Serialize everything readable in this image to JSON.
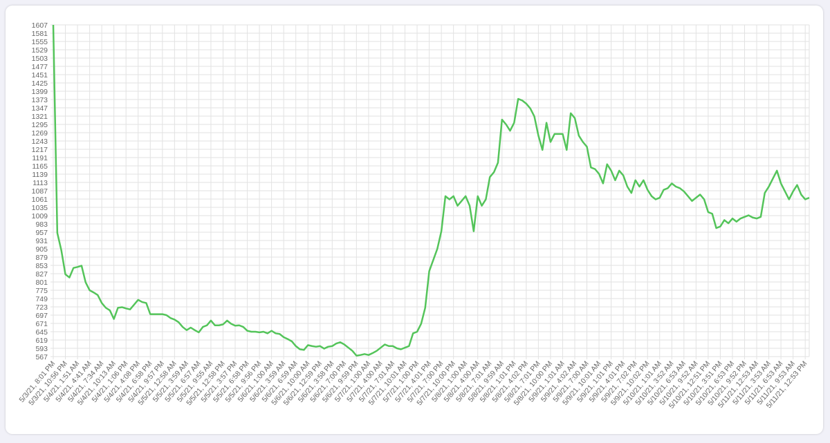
{
  "chart_data": {
    "type": "line",
    "color": "#54c45a",
    "grid": true,
    "categories": [
      "5/3/21, 8:01 PM",
      null,
      null,
      "5/3/21, 10:56 PM",
      null,
      null,
      "5/4/21, 1:51 AM",
      null,
      null,
      "5/4/21, 4:41 AM",
      null,
      null,
      "5/4/21, 7:34 AM",
      null,
      null,
      "5/4/21, 10:13 AM",
      null,
      null,
      "5/4/21, 1:06 PM",
      null,
      null,
      "5/4/21, 4:08 PM",
      null,
      null,
      "5/4/21, 6:58 PM",
      null,
      null,
      "5/4/21, 9:57 PM",
      null,
      null,
      "5/5/21, 12:58 AM",
      null,
      null,
      "5/5/21, 3:59 AM",
      null,
      null,
      "5/5/21, 6:57 AM",
      null,
      null,
      "5/5/21, 9:55 AM",
      null,
      null,
      "5/5/21, 12:58 PM",
      null,
      null,
      "5/5/21, 3:57 PM",
      null,
      null,
      "5/5/21, 6:58 PM",
      null,
      null,
      "5/5/21, 9:56 PM",
      null,
      null,
      "5/6/21, 1:00 AM",
      null,
      null,
      "5/6/21, 3:59 AM",
      null,
      null,
      "5/6/21, 6:59 AM",
      null,
      null,
      "5/6/21, 10:00 AM",
      null,
      null,
      "5/6/21, 12:59 PM",
      null,
      null,
      "5/6/21, 3:58 PM",
      null,
      null,
      "5/6/21, 7:00 PM",
      null,
      null,
      "5/6/21, 9:59 PM",
      null,
      null,
      "5/7/21, 1:00 AM",
      null,
      null,
      "5/7/21, 4:00 AM",
      null,
      null,
      "5/7/21, 7:01 AM",
      null,
      null,
      "5/7/21, 10:01 AM",
      null,
      null,
      "5/7/21, 1:00 PM",
      null,
      null,
      "5/7/21, 4:01 PM",
      null,
      null,
      "5/7/21, 7:00 PM",
      null,
      null,
      "5/7/21, 10:00 PM",
      null,
      null,
      "5/8/21, 1:00 AM",
      null,
      null,
      "5/8/21, 4:00 AM",
      null,
      null,
      "5/8/21, 7:01 AM",
      null,
      null,
      "5/8/21, 9:59 AM",
      null,
      null,
      "5/8/21, 1:01 PM",
      null,
      null,
      "5/8/21, 4:02 PM",
      null,
      null,
      "5/8/21, 7:01 PM",
      null,
      null,
      "5/8/21, 10:00 PM",
      null,
      null,
      "5/9/21, 1:01 AM",
      null,
      null,
      "5/9/21, 4:02 AM",
      null,
      null,
      "5/9/21, 7:00 AM",
      null,
      null,
      "5/9/21, 10:01 AM",
      null,
      null,
      "5/9/21, 1:01 PM",
      null,
      null,
      "5/9/21, 4:01 PM",
      null,
      null,
      "5/9/21, 7:02 PM",
      null,
      null,
      "5/9/21, 10:02 PM",
      null,
      null,
      "5/10/21, 1:01 AM",
      null,
      null,
      "5/10/21, 3:52 AM",
      null,
      null,
      "5/10/21, 6:53 AM",
      null,
      null,
      "5/10/21, 9:52 AM",
      null,
      null,
      "5/10/21, 12:51 PM",
      null,
      null,
      "5/10/21, 3:51 PM",
      null,
      null,
      "5/10/21, 6:53 PM",
      null,
      null,
      "5/10/21, 9:52 PM",
      null,
      null,
      "5/11/21, 12:53 AM",
      null,
      null,
      "5/11/21, 3:53 AM",
      null,
      null,
      "5/11/21, 6:53 AM",
      null,
      null,
      "5/11/21, 9:53 AM",
      null,
      null,
      "5/11/21, 12:53 PM",
      null
    ],
    "values": [
      1607,
      955,
      900,
      825,
      815,
      845,
      848,
      852,
      800,
      775,
      768,
      760,
      735,
      720,
      712,
      685,
      720,
      722,
      718,
      715,
      730,
      745,
      738,
      735,
      700,
      700,
      700,
      700,
      697,
      688,
      683,
      675,
      660,
      650,
      658,
      650,
      643,
      660,
      665,
      680,
      665,
      665,
      668,
      680,
      670,
      664,
      665,
      660,
      648,
      645,
      645,
      643,
      645,
      640,
      648,
      640,
      638,
      628,
      622,
      615,
      600,
      590,
      588,
      603,
      600,
      598,
      600,
      592,
      598,
      600,
      608,
      612,
      605,
      595,
      585,
      570,
      572,
      575,
      572,
      578,
      585,
      595,
      605,
      600,
      600,
      593,
      590,
      595,
      600,
      640,
      645,
      670,
      720,
      835,
      870,
      905,
      960,
      1070,
      1060,
      1070,
      1040,
      1055,
      1070,
      1040,
      960,
      1070,
      1040,
      1060,
      1130,
      1145,
      1175,
      1310,
      1295,
      1275,
      1300,
      1375,
      1370,
      1360,
      1345,
      1320,
      1260,
      1215,
      1300,
      1240,
      1265,
      1265,
      1265,
      1215,
      1330,
      1315,
      1260,
      1240,
      1225,
      1160,
      1155,
      1140,
      1110,
      1170,
      1150,
      1120,
      1150,
      1135,
      1100,
      1080,
      1120,
      1100,
      1120,
      1090,
      1070,
      1060,
      1065,
      1090,
      1095,
      1110,
      1100,
      1095,
      1085,
      1070,
      1055,
      1065,
      1075,
      1060,
      1020,
      1015,
      970,
      975,
      995,
      985,
      1000,
      990,
      1000,
      1005,
      1010,
      1003,
      1000,
      1005,
      1080,
      1100,
      1125,
      1150,
      1110,
      1085,
      1060,
      1085,
      1105,
      1075,
      1060,
      1065
    ],
    "ylim": [
      567,
      1607
    ],
    "yticks": [
      567,
      593,
      619,
      645,
      671,
      697,
      723,
      749,
      775,
      801,
      827,
      853,
      879,
      905,
      931,
      957,
      983,
      1009,
      1035,
      1061,
      1087,
      1113,
      1139,
      1165,
      1191,
      1217,
      1243,
      1269,
      1295,
      1321,
      1347,
      1373,
      1399,
      1425,
      1451,
      1477,
      1503,
      1529,
      1555,
      1581,
      1607
    ]
  }
}
